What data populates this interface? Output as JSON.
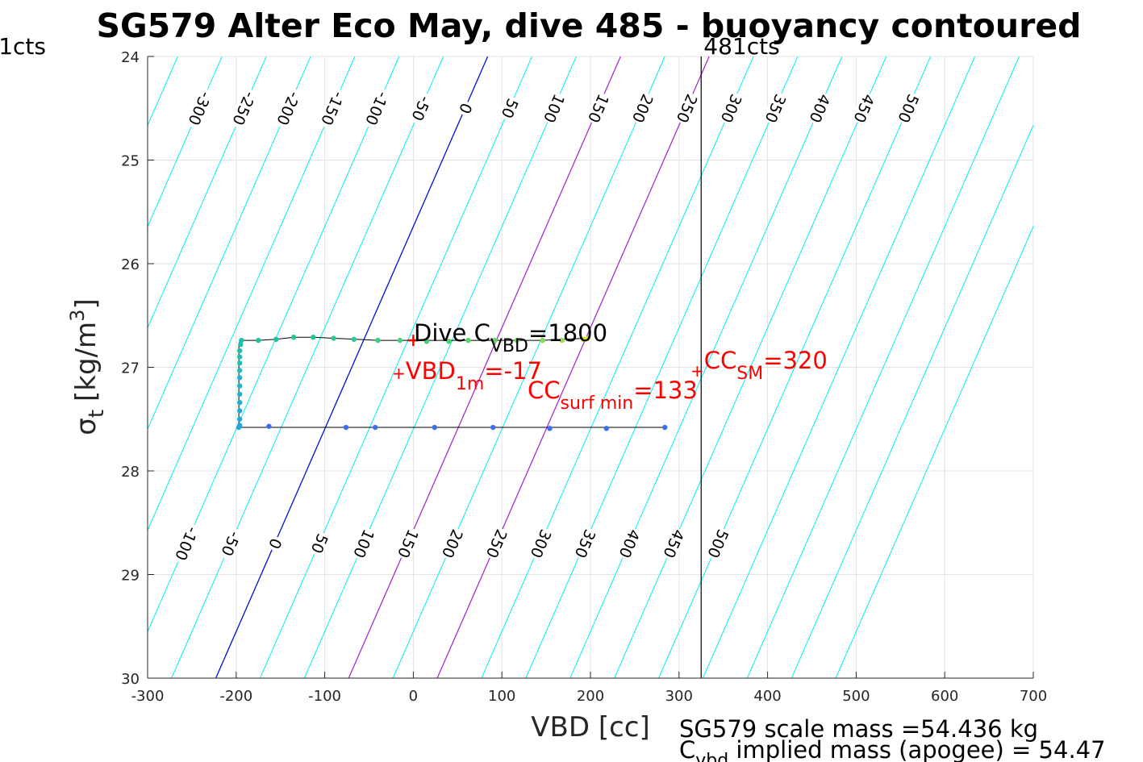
{
  "chart_data": {
    "type": "line",
    "title": "SG579 Alter Eco May, dive 485 - buoyancy contoured",
    "xlabel": "VBD [cc]",
    "ylabel_symbol": "σ",
    "ylabel_sub": "t",
    "ylabel_unit": "[kg/m",
    "ylabel_unit_sup": "3",
    "ylabel_unit_end": "]",
    "xlim": [
      -300,
      700
    ],
    "ylim": [
      24,
      30
    ],
    "y_reversed": true,
    "grid": true,
    "xticks": [
      -300,
      -200,
      -100,
      0,
      100,
      200,
      300,
      400,
      500,
      600,
      700
    ],
    "yticks": [
      24,
      25,
      26,
      27,
      28,
      29,
      30
    ],
    "contours": {
      "sigma_top_label": 24.5,
      "sigma_bottom_label": 28.7,
      "top_labels": [
        -300,
        -250,
        -200,
        -150,
        -100,
        -50,
        0,
        50,
        100,
        150,
        200,
        250,
        300,
        350,
        400,
        450,
        500
      ],
      "bottom_labels": [
        -100,
        -50,
        0,
        50,
        100,
        150,
        200,
        250,
        300,
        350,
        400,
        450,
        500
      ],
      "buoyancy_values": [
        -300,
        -250,
        -200,
        -150,
        -100,
        -50,
        0,
        50,
        100,
        150,
        200,
        250,
        300,
        350,
        400,
        450,
        500
      ],
      "line_color": "#00f0f0",
      "zero_color": "#0010d0",
      "highlight_values": [
        150,
        250
      ],
      "highlight_color": "#a020d0",
      "x_at_sigma24_zero": 84,
      "x_at_sigma30_zero": -223
    },
    "vertical_lines": [
      {
        "x": 325,
        "label_left": "1cts",
        "label_right": "481cts",
        "color": "#000000"
      }
    ],
    "series": [
      {
        "points": [
          [
            -197,
            27.58
          ],
          [
            -170,
            27.58
          ],
          [
            -140,
            27.58
          ],
          [
            -107,
            27.58
          ],
          [
            -74,
            27.58
          ],
          [
            -41,
            27.58
          ],
          [
            -8,
            27.58
          ],
          [
            25,
            27.58
          ],
          [
            58,
            27.58
          ],
          [
            91,
            27.58
          ],
          [
            124,
            27.58
          ],
          [
            157,
            27.58
          ],
          [
            190,
            27.58
          ],
          [
            220,
            27.58
          ],
          [
            252,
            27.58
          ],
          [
            285,
            27.58
          ]
        ],
        "marker_points": [
          {
            "x": -197,
            "y": 27.58,
            "c": "#1f9fe8"
          },
          {
            "x": -163,
            "y": 27.57,
            "c": "#3c6ef0"
          },
          {
            "x": -76,
            "y": 27.58,
            "c": "#3c6ef0"
          },
          {
            "x": -43,
            "y": 27.58,
            "c": "#3c6ef0"
          },
          {
            "x": 24,
            "y": 27.58,
            "c": "#3c6ef0"
          },
          {
            "x": 90,
            "y": 27.58,
            "c": "#3c6ef0"
          },
          {
            "x": 154,
            "y": 27.59,
            "c": "#3c6ef0"
          },
          {
            "x": 218,
            "y": 27.59,
            "c": "#3c6ef0"
          },
          {
            "x": 284,
            "y": 27.58,
            "c": "#3c6ef0"
          }
        ]
      },
      {
        "points": [
          [
            -197,
            27.58
          ],
          [
            -197,
            27.3
          ],
          [
            -197,
            27.0
          ],
          [
            -197,
            26.8
          ],
          [
            -196,
            26.74
          ],
          [
            -175,
            26.74
          ],
          [
            -155,
            26.73
          ],
          [
            -135,
            26.71
          ],
          [
            -112,
            26.71
          ],
          [
            -90,
            26.72
          ],
          [
            -65,
            26.73
          ],
          [
            -40,
            26.74
          ],
          [
            -15,
            26.74
          ],
          [
            15,
            26.74
          ],
          [
            40,
            26.74
          ],
          [
            65,
            26.74
          ],
          [
            90,
            26.74
          ],
          [
            115,
            26.74
          ],
          [
            145,
            26.74
          ],
          [
            170,
            26.73
          ],
          [
            195,
            26.72
          ]
        ],
        "marker_points": [
          {
            "x": -196,
            "y": 27.56,
            "c": "#1fa8e0"
          },
          {
            "x": -196,
            "y": 27.5,
            "c": "#1fa8e0"
          },
          {
            "x": -196,
            "y": 27.42,
            "c": "#1fb0d0"
          },
          {
            "x": -196,
            "y": 27.34,
            "c": "#1fb0d0"
          },
          {
            "x": -196,
            "y": 27.26,
            "c": "#1fb8c8"
          },
          {
            "x": -196,
            "y": 27.18,
            "c": "#1fb8c8"
          },
          {
            "x": -196,
            "y": 27.1,
            "c": "#1fb8c8"
          },
          {
            "x": -196,
            "y": 27.03,
            "c": "#1fc0b8"
          },
          {
            "x": -196,
            "y": 26.96,
            "c": "#1fc0b8"
          },
          {
            "x": -196,
            "y": 26.9,
            "c": "#1fc0b0"
          },
          {
            "x": -196,
            "y": 26.84,
            "c": "#1fc0b0"
          },
          {
            "x": -195,
            "y": 26.78,
            "c": "#20c0a8"
          },
          {
            "x": -194,
            "y": 26.74,
            "c": "#20c0a8"
          },
          {
            "x": -175,
            "y": 26.74,
            "c": "#20c0a0"
          },
          {
            "x": -155,
            "y": 26.73,
            "c": "#20c0a0"
          },
          {
            "x": -135,
            "y": 26.71,
            "c": "#28c498"
          },
          {
            "x": -113,
            "y": 26.71,
            "c": "#28c498"
          },
          {
            "x": -90,
            "y": 26.72,
            "c": "#30c890"
          },
          {
            "x": -67,
            "y": 26.73,
            "c": "#30c890"
          },
          {
            "x": -40,
            "y": 26.74,
            "c": "#38cc88"
          },
          {
            "x": -15,
            "y": 26.74,
            "c": "#40d080"
          },
          {
            "x": 15,
            "y": 26.75,
            "c": "#48d078"
          },
          {
            "x": 40,
            "y": 26.75,
            "c": "#50d470"
          },
          {
            "x": 62,
            "y": 26.74,
            "c": "#58d468"
          },
          {
            "x": 92,
            "y": 26.74,
            "c": "#60d860"
          },
          {
            "x": 117,
            "y": 26.74,
            "c": "#68d858"
          },
          {
            "x": 146,
            "y": 26.74,
            "c": "#80dc50"
          },
          {
            "x": 168,
            "y": 26.74,
            "c": "#98e048"
          },
          {
            "x": 192,
            "y": 26.73,
            "c": "#c0e040"
          },
          {
            "x": 197,
            "y": 26.72,
            "c": "#e8e030"
          }
        ]
      }
    ],
    "annotations": {
      "dive_c_vbd": {
        "text": "Dive C",
        "sub": "VBD",
        "rest": "=1800",
        "x": 0,
        "y": 26.6
      },
      "vbd_1m": {
        "plus": "+",
        "text": "VBD",
        "sub": "1m",
        "rest": "=-17",
        "x": -17,
        "y": 27.05
      },
      "cc_surf_min": {
        "text": "CC",
        "sub": "surf min",
        "rest": "=133",
        "x": 133,
        "y": 27.22
      },
      "cc_sm": {
        "plus": "+",
        "text": "CC",
        "sub": "SM",
        "rest": "=320",
        "x": 320,
        "y": 26.95
      },
      "red_cross": {
        "x": 0,
        "y": 26.74
      },
      "color_red": "#ff0000"
    },
    "footer": {
      "line1": "SG579 scale mass =54.436 kg",
      "line2_c": "C",
      "line2_sub": "vbd",
      "line2_rest": " implied mass (apogee) = 54.47"
    }
  }
}
